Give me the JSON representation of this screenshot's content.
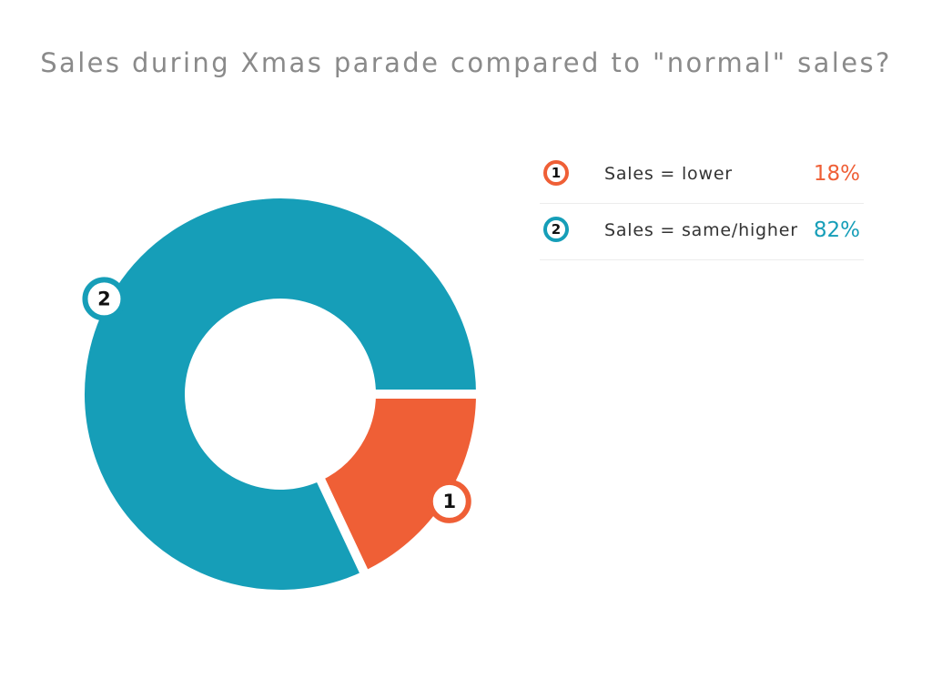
{
  "chart_data": {
    "type": "pie",
    "variant": "donut",
    "title": "Sales during Xmas parade compared to \"normal\" sales?",
    "slices": [
      {
        "marker": "1",
        "label": "Sales = lower",
        "value": 18,
        "value_label": "18%",
        "color": "#ef5f36"
      },
      {
        "marker": "2",
        "label": "Sales = same/higher",
        "value": 82,
        "value_label": "82%",
        "color": "#169eb8"
      }
    ],
    "legend": {
      "placement": "right"
    }
  }
}
